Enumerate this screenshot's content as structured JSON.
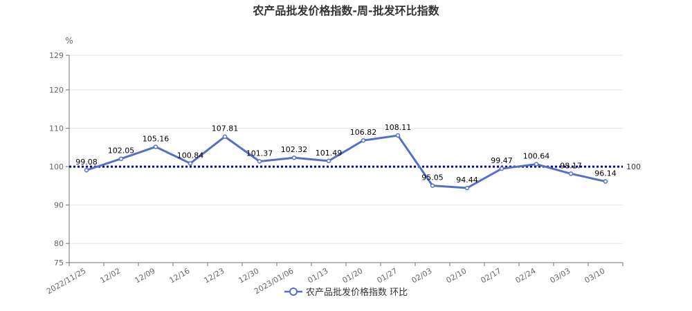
{
  "chart_data": {
    "type": "line",
    "title": "农产品批发价格指数-周-批发环比指数",
    "y_unit": "%",
    "ylim": [
      75,
      129
    ],
    "y_ticks": [
      75,
      80,
      90,
      100,
      110,
      120,
      129
    ],
    "grid": true,
    "legend_position": "bottom-center",
    "categories": [
      "2022/11/25",
      "12/02",
      "12/09",
      "12/16",
      "12/23",
      "12/30",
      "2023/01/06",
      "01/13",
      "01/20",
      "01/27",
      "02/03",
      "02/10",
      "02/17",
      "02/24",
      "03/03",
      "03/10"
    ],
    "series": [
      {
        "name": "农产品批发价格指数 环比",
        "color": "#5470c6",
        "values": [
          99.08,
          102.05,
          105.16,
          100.84,
          107.81,
          101.37,
          102.32,
          101.49,
          106.82,
          108.11,
          95.05,
          94.44,
          99.47,
          100.64,
          98.17,
          96.14
        ],
        "value_labels": [
          "99.08",
          "102.05",
          "105.16",
          "100.84",
          "107.81",
          "101.37",
          "102.32",
          "101.49",
          "106.82",
          "108.11",
          "95.05",
          "94.44",
          "99.47",
          "100.64",
          "98.17",
          "96.14"
        ]
      }
    ],
    "reference_line": {
      "value": 100,
      "label": "100",
      "color": "#0000aa",
      "style": "dotted"
    }
  }
}
